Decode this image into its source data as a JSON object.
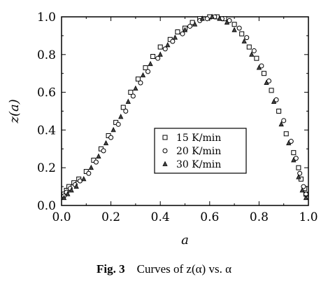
{
  "caption": {
    "label": "Fig. 3",
    "text": "Curves of z(α) vs. α"
  },
  "chart_data": {
    "type": "scatter",
    "title": "",
    "xlabel": "a",
    "ylabel": "z(a)",
    "xlim": [
      0.0,
      1.0
    ],
    "ylim": [
      0.0,
      1.0
    ],
    "xticks": [
      "0.0",
      "0.2",
      "0.4",
      "0.6",
      "0.8",
      "1.0"
    ],
    "yticks": [
      "0.0",
      "0.2",
      "0.4",
      "0.6",
      "0.8",
      "1.0"
    ],
    "grid": false,
    "legend_position": "center-right",
    "series": [
      {
        "name": "15 K/min",
        "marker": "square",
        "x": [
          0.01,
          0.02,
          0.03,
          0.05,
          0.07,
          0.1,
          0.13,
          0.16,
          0.19,
          0.22,
          0.25,
          0.28,
          0.31,
          0.34,
          0.37,
          0.4,
          0.44,
          0.47,
          0.5,
          0.53,
          0.56,
          0.6,
          0.63,
          0.66,
          0.7,
          0.73,
          0.76,
          0.79,
          0.82,
          0.85,
          0.88,
          0.91,
          0.94,
          0.96,
          0.97,
          0.985,
          0.99
        ],
        "y": [
          0.06,
          0.08,
          0.1,
          0.12,
          0.14,
          0.18,
          0.24,
          0.3,
          0.37,
          0.44,
          0.52,
          0.6,
          0.67,
          0.73,
          0.79,
          0.84,
          0.88,
          0.92,
          0.94,
          0.97,
          0.99,
          1.0,
          1.0,
          0.99,
          0.96,
          0.91,
          0.84,
          0.78,
          0.7,
          0.61,
          0.5,
          0.38,
          0.28,
          0.2,
          0.14,
          0.09,
          0.06
        ]
      },
      {
        "name": "20 K/min",
        "marker": "circle",
        "x": [
          0.01,
          0.02,
          0.035,
          0.055,
          0.075,
          0.11,
          0.14,
          0.17,
          0.2,
          0.23,
          0.26,
          0.29,
          0.32,
          0.35,
          0.39,
          0.42,
          0.45,
          0.49,
          0.52,
          0.56,
          0.59,
          0.62,
          0.65,
          0.68,
          0.72,
          0.75,
          0.78,
          0.81,
          0.84,
          0.87,
          0.9,
          0.93,
          0.95,
          0.965,
          0.98,
          0.99
        ],
        "y": [
          0.05,
          0.07,
          0.09,
          0.11,
          0.13,
          0.17,
          0.23,
          0.29,
          0.36,
          0.43,
          0.5,
          0.58,
          0.65,
          0.71,
          0.78,
          0.83,
          0.87,
          0.91,
          0.95,
          0.98,
          0.99,
          1.0,
          0.99,
          0.98,
          0.94,
          0.89,
          0.82,
          0.74,
          0.66,
          0.56,
          0.45,
          0.34,
          0.25,
          0.17,
          0.1,
          0.06
        ]
      },
      {
        "name": "30 K/min",
        "marker": "triangle",
        "x": [
          0.01,
          0.025,
          0.04,
          0.06,
          0.09,
          0.12,
          0.15,
          0.18,
          0.21,
          0.24,
          0.27,
          0.3,
          0.33,
          0.36,
          0.4,
          0.43,
          0.46,
          0.5,
          0.54,
          0.57,
          0.61,
          0.64,
          0.67,
          0.7,
          0.74,
          0.77,
          0.8,
          0.83,
          0.86,
          0.89,
          0.92,
          0.94,
          0.96,
          0.975,
          0.99
        ],
        "y": [
          0.04,
          0.06,
          0.08,
          0.1,
          0.14,
          0.2,
          0.26,
          0.33,
          0.4,
          0.47,
          0.55,
          0.62,
          0.69,
          0.75,
          0.8,
          0.85,
          0.89,
          0.93,
          0.96,
          0.99,
          1.0,
          0.99,
          0.97,
          0.93,
          0.87,
          0.8,
          0.73,
          0.65,
          0.55,
          0.43,
          0.33,
          0.24,
          0.15,
          0.08,
          0.04
        ]
      }
    ]
  }
}
